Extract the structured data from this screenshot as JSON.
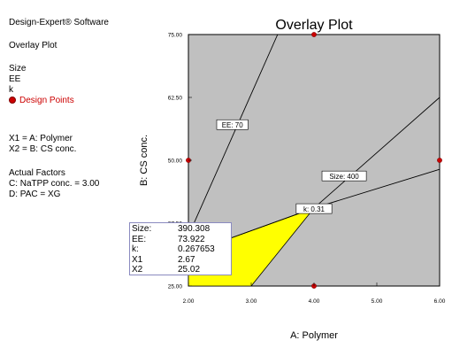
{
  "sidebar": {
    "software": "Design-Expert® Software",
    "plot_name": "Overlay Plot",
    "responses": [
      "Size",
      "EE",
      "k"
    ],
    "design_points_label": "Design Points",
    "factors": [
      "X1 = A: Polymer",
      "X2 = B: CS conc."
    ],
    "actual_factors_title": "Actual Factors",
    "actual_factors": [
      "C: NaTPP conc. = 3.00",
      "D: PAC = XG"
    ]
  },
  "colors": {
    "plot_bg": "#c0c0c0",
    "feasible": "#ffff00",
    "design_point": "#cc0000",
    "line": "#000000"
  },
  "chart_data": {
    "type": "overlay-contour",
    "title": "Overlay Plot",
    "xlabel": "A: Polymer",
    "ylabel": "B: CS conc.",
    "xlim": [
      2.0,
      6.0
    ],
    "ylim": [
      25.0,
      75.0
    ],
    "x_ticks": [
      "2.00",
      "3.00",
      "4.00",
      "5.00",
      "6.00"
    ],
    "y_ticks": [
      "25.00",
      "37.50",
      "50.00",
      "62.50",
      "75.00"
    ],
    "contours": [
      {
        "label": "EE: 70",
        "points": [
          [
            2.0,
            35.0
          ],
          [
            3.42,
            75.0
          ]
        ],
        "label_at": [
          2.7,
          57.0
        ]
      },
      {
        "label": "Size: 400",
        "points": [
          [
            4.0,
            40.5
          ],
          [
            6.0,
            62.5
          ]
        ],
        "label_at": [
          4.48,
          46.8
        ]
      },
      {
        "label": "k: 0.31",
        "points": [
          [
            2.0,
            31.5
          ],
          [
            4.0,
            40.5
          ],
          [
            6.0,
            48.2
          ]
        ],
        "label_at": [
          4.0,
          40.3
        ]
      }
    ],
    "feasible_region": [
      [
        2.0,
        25.0
      ],
      [
        3.0,
        25.0
      ],
      [
        4.0,
        40.5
      ],
      [
        2.0,
        31.5
      ]
    ],
    "design_points": [
      [
        2.0,
        50.0
      ],
      [
        4.0,
        75.0
      ],
      [
        4.0,
        25.0
      ],
      [
        6.0,
        50.0
      ]
    ],
    "flag": {
      "rows": [
        {
          "label": "Size:",
          "value": "390.308"
        },
        {
          "label": "EE:",
          "value": "73.922"
        },
        {
          "label": "k:",
          "value": "0.267653"
        },
        {
          "label": "X1",
          "value": "2.67"
        },
        {
          "label": "X2",
          "value": "25.02"
        }
      ]
    }
  }
}
